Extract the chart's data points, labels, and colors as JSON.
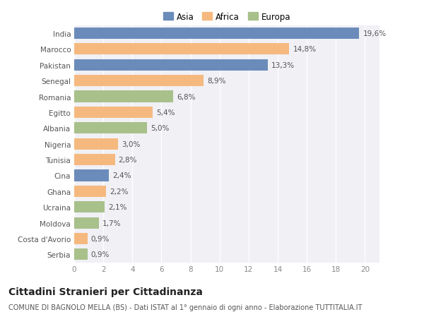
{
  "categories": [
    "India",
    "Marocco",
    "Pakistan",
    "Senegal",
    "Romania",
    "Egitto",
    "Albania",
    "Nigeria",
    "Tunisia",
    "Cina",
    "Ghana",
    "Ucraina",
    "Moldova",
    "Costa d'Avorio",
    "Serbia"
  ],
  "values": [
    19.6,
    14.8,
    13.3,
    8.9,
    6.8,
    5.4,
    5.0,
    3.0,
    2.8,
    2.4,
    2.2,
    2.1,
    1.7,
    0.9,
    0.9
  ],
  "labels": [
    "19,6%",
    "14,8%",
    "13,3%",
    "8,9%",
    "6,8%",
    "5,4%",
    "5,0%",
    "3,0%",
    "2,8%",
    "2,4%",
    "2,2%",
    "2,1%",
    "1,7%",
    "0,9%",
    "0,9%"
  ],
  "colors": [
    "#6b8cba",
    "#f5b97f",
    "#6b8cba",
    "#f5b97f",
    "#a8c08a",
    "#f5b97f",
    "#a8c08a",
    "#f5b97f",
    "#f5b97f",
    "#6b8cba",
    "#f5b97f",
    "#a8c08a",
    "#a8c08a",
    "#f5b97f",
    "#a8c08a"
  ],
  "legend_labels": [
    "Asia",
    "Africa",
    "Europa"
  ],
  "legend_colors": [
    "#6b8cba",
    "#f5b97f",
    "#a8c08a"
  ],
  "xlim": [
    0,
    21
  ],
  "xticks": [
    0,
    2,
    4,
    6,
    8,
    10,
    12,
    14,
    16,
    18,
    20
  ],
  "title": "Cittadini Stranieri per Cittadinanza",
  "subtitle": "COMUNE DI BAGNOLO MELLA (BS) - Dati ISTAT al 1° gennaio di ogni anno - Elaborazione TUTTITALIA.IT",
  "background_color": "#ffffff",
  "plot_bg_color": "#f0f0f5",
  "grid_color": "#ffffff",
  "bar_height": 0.72,
  "title_fontsize": 10,
  "subtitle_fontsize": 7,
  "label_fontsize": 7.5,
  "tick_fontsize": 7.5,
  "legend_fontsize": 8.5
}
